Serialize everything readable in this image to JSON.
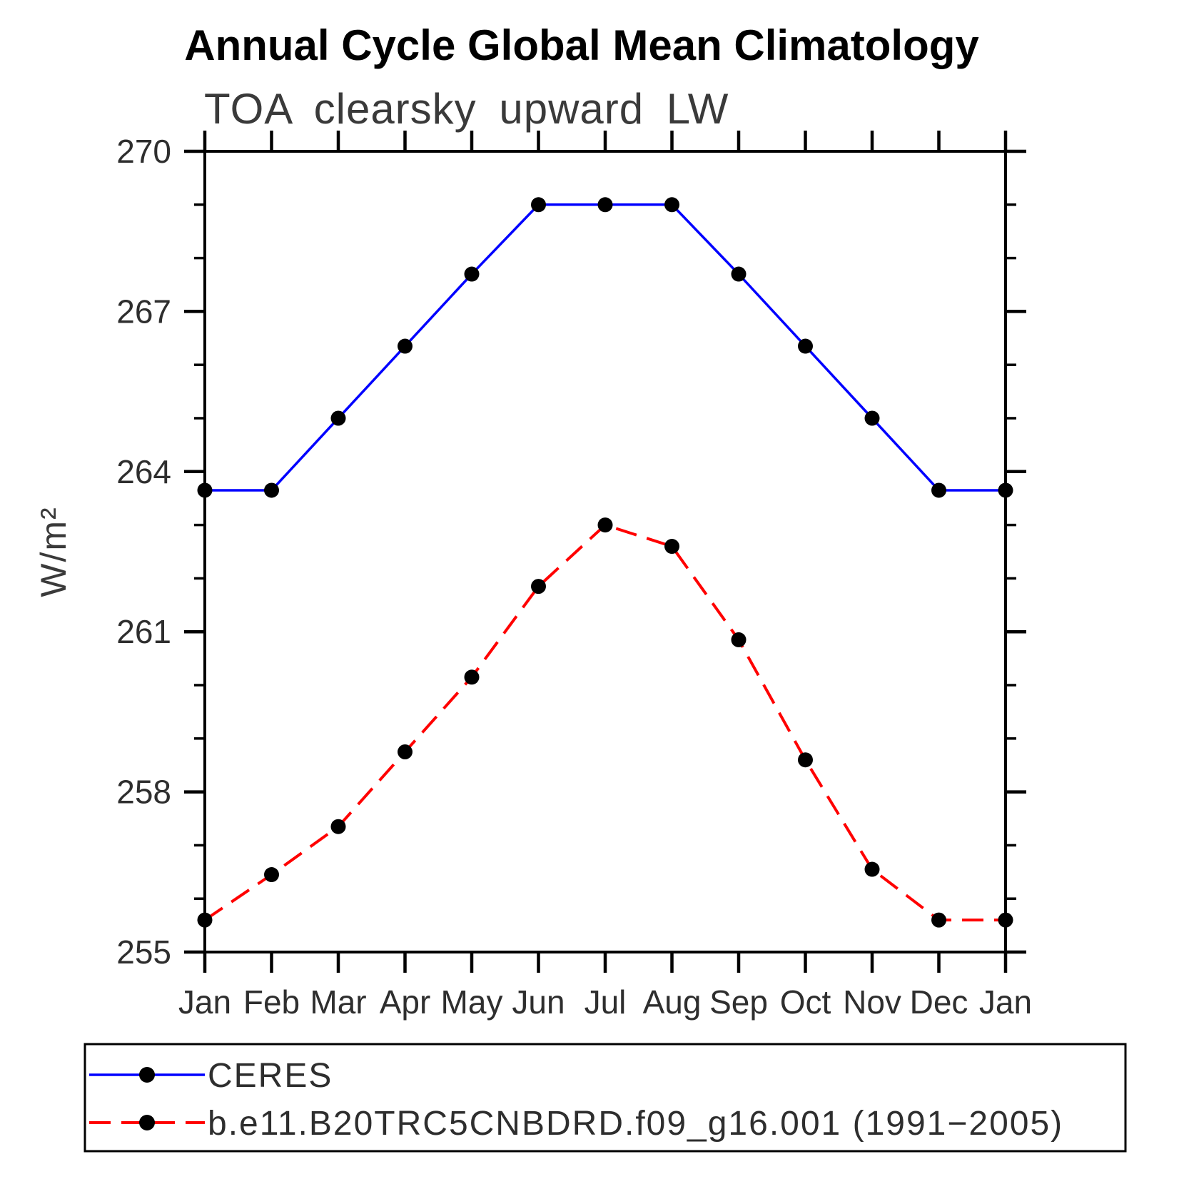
{
  "chart_data": {
    "type": "line",
    "title": "Annual Cycle Global Mean Climatology",
    "subtitle": "TOA clearsky upward LW",
    "xlabel": "",
    "ylabel": "W/m²",
    "categories": [
      "Jan",
      "Feb",
      "Mar",
      "Apr",
      "May",
      "Jun",
      "Jul",
      "Aug",
      "Sep",
      "Oct",
      "Nov",
      "Dec",
      "Jan"
    ],
    "ylim": [
      255,
      270
    ],
    "ytick_major": [
      255,
      258,
      261,
      264,
      267,
      270
    ],
    "ytick_minor_step": 1,
    "grid": false,
    "legend_position": "bottom-left-box",
    "series": [
      {
        "name": "CERES",
        "color": "#0000ff",
        "line_style": "solid",
        "line_width": 3.5,
        "marker": "circle",
        "marker_color": "#000000",
        "values": [
          263.65,
          263.65,
          265.0,
          266.35,
          267.7,
          269.0,
          269.0,
          269.0,
          267.7,
          266.35,
          265.0,
          263.65,
          263.65
        ]
      },
      {
        "name": "b.e11.B20TRC5CNBDRD.f09_g16.001 (1991−2005)",
        "color": "#ff0000",
        "line_style": "dashed",
        "line_width": 4,
        "marker": "circle",
        "marker_color": "#000000",
        "values": [
          255.6,
          256.45,
          257.35,
          258.75,
          260.15,
          261.85,
          263.0,
          262.6,
          260.85,
          258.6,
          256.55,
          255.6,
          255.6
        ]
      }
    ],
    "axis_color": "#000000",
    "background_color": "#ffffff"
  }
}
